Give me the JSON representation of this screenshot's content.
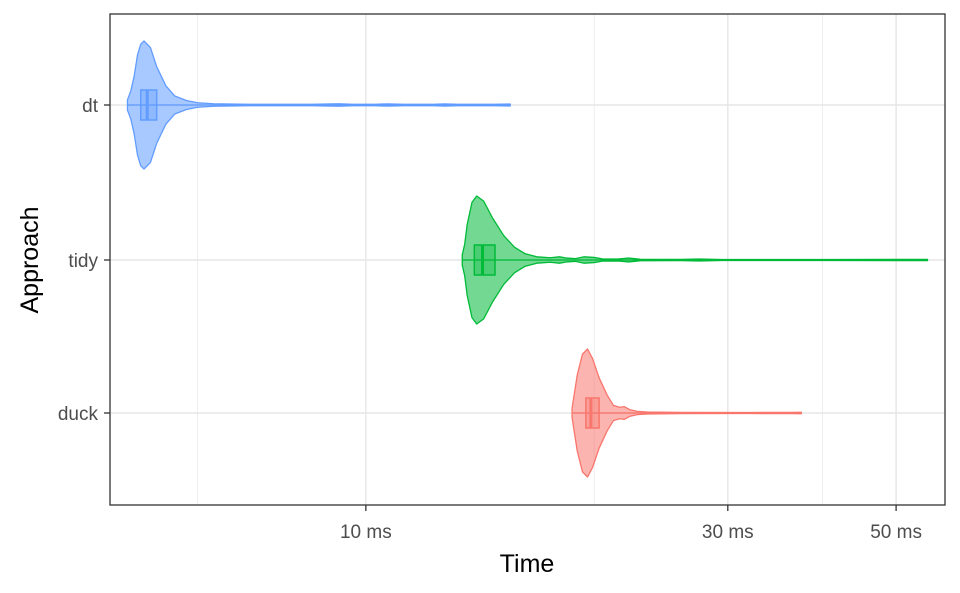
{
  "chart_data": {
    "type": "violin",
    "title": "",
    "xlabel": "Time",
    "ylabel": "Approach",
    "x_scale": "log",
    "x_unit": "ms",
    "xlim": [
      4.6,
      58
    ],
    "x_ticks": [
      {
        "value": 10,
        "label": "10 ms"
      },
      {
        "value": 30,
        "label": "30 ms"
      },
      {
        "value": 50,
        "label": "50 ms"
      }
    ],
    "x_minor_grid": [
      6,
      20,
      40
    ],
    "grid": true,
    "legend": "none",
    "categories": [
      "dt",
      "tidy",
      "duck"
    ],
    "series": [
      {
        "category": "dt",
        "color": "#619CFF",
        "min": 4.85,
        "max": 15.5,
        "box": {
          "q1": 5.05,
          "median": 5.15,
          "q3": 5.3
        },
        "density": [
          [
            4.85,
            0.08
          ],
          [
            4.9,
            0.22
          ],
          [
            4.95,
            0.45
          ],
          [
            5.0,
            0.78
          ],
          [
            5.05,
            0.95
          ],
          [
            5.1,
            1.0
          ],
          [
            5.2,
            0.9
          ],
          [
            5.3,
            0.6
          ],
          [
            5.45,
            0.3
          ],
          [
            5.6,
            0.14
          ],
          [
            5.8,
            0.07
          ],
          [
            6.0,
            0.035
          ],
          [
            6.3,
            0.02
          ],
          [
            7.0,
            0.012
          ],
          [
            8.5,
            0.012
          ],
          [
            9.2,
            0.02
          ],
          [
            9.6,
            0.012
          ],
          [
            10.3,
            0.012
          ],
          [
            10.7,
            0.018
          ],
          [
            11.2,
            0.012
          ],
          [
            12.3,
            0.012
          ],
          [
            12.7,
            0.018
          ],
          [
            13.2,
            0.012
          ],
          [
            14.8,
            0.012
          ],
          [
            15.5,
            0.015
          ]
        ]
      },
      {
        "category": "tidy",
        "color": "#00BA38",
        "min": 13.4,
        "max": 55,
        "box": {
          "q1": 13.9,
          "median": 14.25,
          "q3": 14.8
        },
        "density": [
          [
            13.4,
            0.08
          ],
          [
            13.5,
            0.25
          ],
          [
            13.6,
            0.55
          ],
          [
            13.8,
            0.9
          ],
          [
            14.0,
            1.0
          ],
          [
            14.3,
            0.92
          ],
          [
            14.7,
            0.65
          ],
          [
            15.2,
            0.38
          ],
          [
            15.7,
            0.2
          ],
          [
            16.2,
            0.1
          ],
          [
            16.8,
            0.05
          ],
          [
            17.5,
            0.035
          ],
          [
            18.0,
            0.05
          ],
          [
            18.4,
            0.03
          ],
          [
            18.9,
            0.022
          ],
          [
            19.4,
            0.05
          ],
          [
            20.0,
            0.04
          ],
          [
            20.5,
            0.018
          ],
          [
            21.5,
            0.015
          ],
          [
            22.2,
            0.03
          ],
          [
            23.0,
            0.012
          ],
          [
            26.0,
            0.01
          ],
          [
            27.5,
            0.015
          ],
          [
            29.5,
            0.008
          ],
          [
            40.0,
            0.008
          ],
          [
            54.0,
            0.01
          ],
          [
            55.0,
            0.01
          ]
        ]
      },
      {
        "category": "duck",
        "color": "#F8766D",
        "min": 18.7,
        "max": 37.5,
        "box": {
          "q1": 19.5,
          "median": 19.8,
          "q3": 20.3
        },
        "density": [
          [
            18.7,
            0.07
          ],
          [
            18.8,
            0.25
          ],
          [
            19.0,
            0.6
          ],
          [
            19.3,
            0.92
          ],
          [
            19.6,
            1.0
          ],
          [
            19.9,
            0.85
          ],
          [
            20.3,
            0.55
          ],
          [
            20.8,
            0.28
          ],
          [
            21.2,
            0.12
          ],
          [
            21.6,
            0.09
          ],
          [
            21.9,
            0.1
          ],
          [
            22.3,
            0.05
          ],
          [
            22.8,
            0.025
          ],
          [
            23.5,
            0.015
          ],
          [
            26.0,
            0.01
          ],
          [
            32.0,
            0.008
          ],
          [
            36.5,
            0.01
          ],
          [
            37.5,
            0.012
          ]
        ]
      }
    ]
  }
}
